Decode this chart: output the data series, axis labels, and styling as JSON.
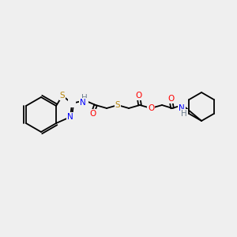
{
  "bg_color": "#efefef",
  "bond_color": "#000000",
  "atom_colors": {
    "S": "#b8860b",
    "N": "#0000ff",
    "O": "#ff0000",
    "H": "#708090",
    "C": "#000000"
  },
  "font_size": 7.5,
  "bond_width": 1.3
}
